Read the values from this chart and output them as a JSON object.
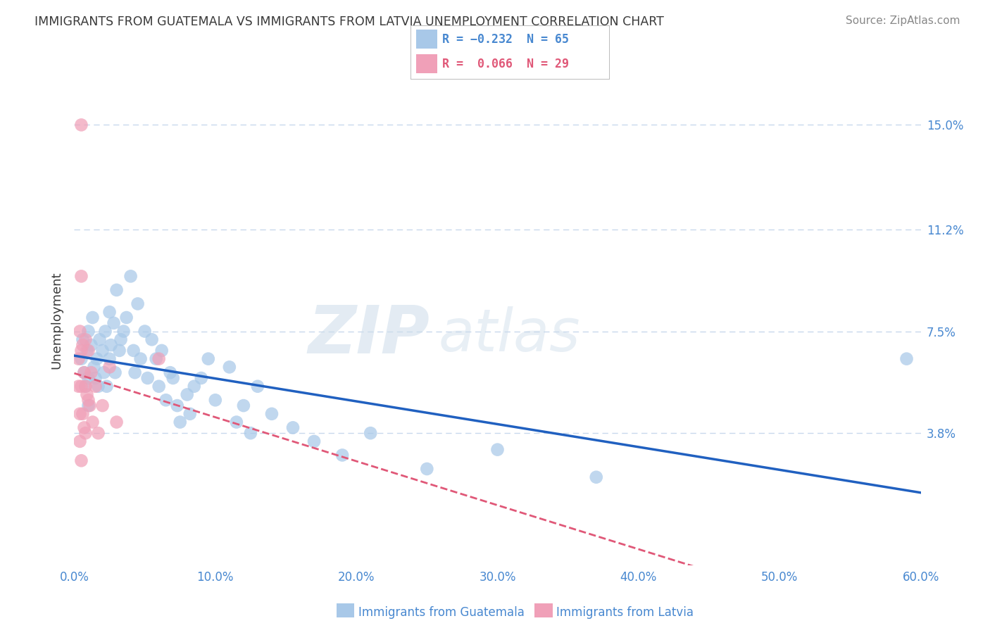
{
  "title": "IMMIGRANTS FROM GUATEMALA VS IMMIGRANTS FROM LATVIA UNEMPLOYMENT CORRELATION CHART",
  "source": "Source: ZipAtlas.com",
  "ylabel": "Unemployment",
  "xlim": [
    0.0,
    0.6
  ],
  "ylim": [
    -0.01,
    0.168
  ],
  "yticks": [
    0.038,
    0.075,
    0.112,
    0.15
  ],
  "ytick_labels": [
    "3.8%",
    "7.5%",
    "11.2%",
    "15.0%"
  ],
  "xticks": [
    0.0,
    0.1,
    0.2,
    0.3,
    0.4,
    0.5,
    0.6
  ],
  "xtick_labels": [
    "0.0%",
    "10.0%",
    "20.0%",
    "30.0%",
    "40.0%",
    "50.0%",
    "60.0%"
  ],
  "guatemala_x": [
    0.005,
    0.006,
    0.007,
    0.008,
    0.009,
    0.01,
    0.01,
    0.01,
    0.012,
    0.013,
    0.014,
    0.015,
    0.016,
    0.017,
    0.018,
    0.02,
    0.021,
    0.022,
    0.023,
    0.025,
    0.025,
    0.026,
    0.028,
    0.029,
    0.03,
    0.032,
    0.033,
    0.035,
    0.037,
    0.04,
    0.042,
    0.043,
    0.045,
    0.047,
    0.05,
    0.052,
    0.055,
    0.058,
    0.06,
    0.062,
    0.065,
    0.068,
    0.07,
    0.073,
    0.075,
    0.08,
    0.082,
    0.085,
    0.09,
    0.095,
    0.1,
    0.11,
    0.115,
    0.12,
    0.125,
    0.13,
    0.14,
    0.155,
    0.17,
    0.19,
    0.21,
    0.25,
    0.3,
    0.37,
    0.59
  ],
  "guatemala_y": [
    0.065,
    0.072,
    0.06,
    0.055,
    0.068,
    0.075,
    0.058,
    0.048,
    0.07,
    0.08,
    0.062,
    0.058,
    0.065,
    0.055,
    0.072,
    0.068,
    0.06,
    0.075,
    0.055,
    0.082,
    0.065,
    0.07,
    0.078,
    0.06,
    0.09,
    0.068,
    0.072,
    0.075,
    0.08,
    0.095,
    0.068,
    0.06,
    0.085,
    0.065,
    0.075,
    0.058,
    0.072,
    0.065,
    0.055,
    0.068,
    0.05,
    0.06,
    0.058,
    0.048,
    0.042,
    0.052,
    0.045,
    0.055,
    0.058,
    0.065,
    0.05,
    0.062,
    0.042,
    0.048,
    0.038,
    0.055,
    0.045,
    0.04,
    0.035,
    0.03,
    0.038,
    0.025,
    0.032,
    0.022,
    0.065
  ],
  "latvia_x": [
    0.003,
    0.003,
    0.004,
    0.004,
    0.004,
    0.005,
    0.005,
    0.005,
    0.005,
    0.005,
    0.006,
    0.006,
    0.007,
    0.007,
    0.008,
    0.008,
    0.008,
    0.009,
    0.01,
    0.01,
    0.011,
    0.012,
    0.013,
    0.015,
    0.017,
    0.02,
    0.025,
    0.03,
    0.06
  ],
  "latvia_y": [
    0.065,
    0.055,
    0.075,
    0.045,
    0.035,
    0.15,
    0.095,
    0.068,
    0.055,
    0.028,
    0.07,
    0.045,
    0.06,
    0.04,
    0.072,
    0.055,
    0.038,
    0.052,
    0.068,
    0.05,
    0.048,
    0.06,
    0.042,
    0.055,
    0.038,
    0.048,
    0.062,
    0.042,
    0.065
  ],
  "guatemala_dot_color": "#a8c8e8",
  "guatemala_line_color": "#2060c0",
  "latvia_dot_color": "#f0a0b8",
  "latvia_line_color": "#e05878",
  "legend_guatemala_R": "R = −0.232",
  "legend_guatemala_N": "N = 65",
  "legend_latvia_R": "R =  0.066",
  "legend_latvia_N": "N = 29",
  "legend_guatemala_color": "#a8c8e8",
  "legend_latvia_color": "#f0a0b8",
  "grid_color": "#c8d8ec",
  "background_color": "#ffffff",
  "title_color": "#3a3a3a",
  "ylabel_color": "#3a3a3a",
  "tick_color": "#4888d0",
  "source_color": "#888888",
  "bottom_legend_guatemala": "Immigrants from Guatemala",
  "bottom_legend_latvia": "Immigrants from Latvia"
}
